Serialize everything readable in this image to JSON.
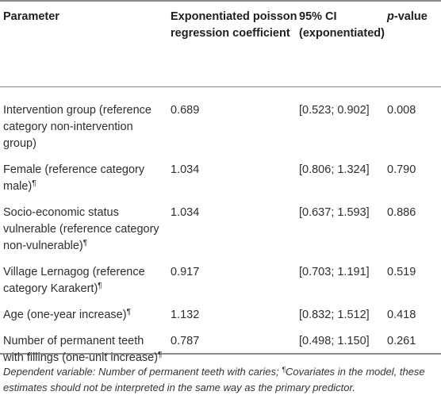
{
  "header": {
    "parameter": "Parameter",
    "coef": "Exponentiated poisson regression coefficient",
    "ci": "95% CI (exponentiated)",
    "pvalue_italic": "p",
    "pvalue_rest": "-value"
  },
  "rows": [
    {
      "parameter": "Intervention group (reference category non-intervention group)",
      "mark": "",
      "coef": "0.689",
      "ci": "[0.523; 0.902]",
      "p": "0.008"
    },
    {
      "parameter": "Female (reference category male)",
      "mark": "¶",
      "coef": "1.034",
      "ci": "[0.806; 1.324]",
      "p": "0.790"
    },
    {
      "parameter": "Socio-economic status vulnerable (reference category non-vulnerable)",
      "mark": "¶",
      "coef": "1.034",
      "ci": "[0.637; 1.593]",
      "p": "0.886"
    },
    {
      "parameter": "Village Lernagog (reference category Karakert)",
      "mark": "¶",
      "coef": "0.917",
      "ci": "[0.703; 1.191]",
      "p": "0.519"
    },
    {
      "parameter": "Age (one-year increase)",
      "mark": "¶",
      "coef": "1.132",
      "ci": "[0.832; 1.512]",
      "p": "0.418"
    },
    {
      "parameter": "Number of permanent teeth with fillings (one-unit increase)",
      "mark": "¶",
      "coef": "0.787",
      "ci": "[0.498; 1.150]",
      "p": "0.261"
    }
  ],
  "footnote": {
    "part1": "Dependent variable: Number of permanent teeth with caries; ",
    "mark": "¶",
    "part2": "Covariates in the model, these estimates should not be interpreted in the same way as the primary predictor."
  }
}
